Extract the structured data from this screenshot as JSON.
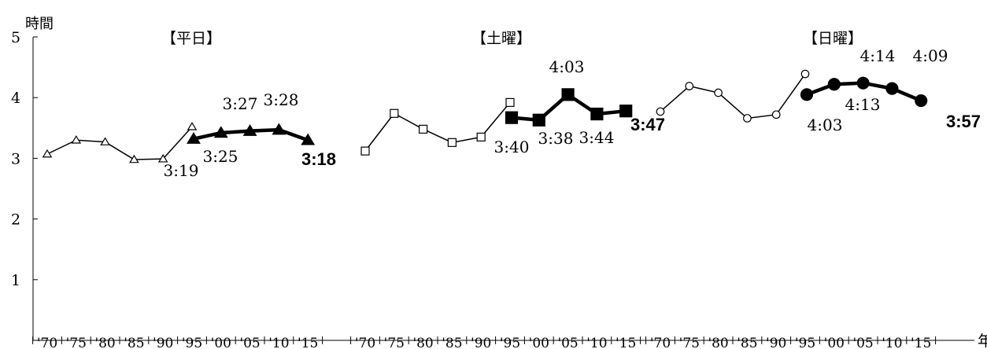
{
  "chart_data": {
    "type": "line",
    "ylabel": "時間",
    "xlabel": "年",
    "ylim": [
      0,
      5
    ],
    "yticks": [
      "5",
      "4",
      "3",
      "2",
      "1"
    ],
    "categories": [
      "'70",
      "'75",
      "'80",
      "'85",
      "'90",
      "'95",
      "'00",
      "'05",
      "'10",
      "'15"
    ],
    "grid": false,
    "panels": [
      {
        "title": "【平日】",
        "old_series": {
          "marker": "open-triangle",
          "x": [
            "'70",
            "'75",
            "'80",
            "'85",
            "'90",
            "'95"
          ],
          "values": [
            3.07,
            3.3,
            3.27,
            2.98,
            2.99,
            3.52
          ]
        },
        "new_series": {
          "marker": "filled-triangle",
          "x": [
            "'95",
            "'00",
            "'05",
            "'10",
            "'15"
          ],
          "values": [
            3.32,
            3.42,
            3.45,
            3.47,
            3.3
          ]
        },
        "data_labels": [
          "3:19",
          "3:25",
          "3:27",
          "3:28",
          "3:18"
        ]
      },
      {
        "title": "【土曜】",
        "old_series": {
          "marker": "open-square",
          "x": [
            "'70",
            "'75",
            "'80",
            "'85",
            "'90",
            "'95"
          ],
          "values": [
            3.12,
            3.74,
            3.48,
            3.26,
            3.35,
            3.92
          ]
        },
        "new_series": {
          "marker": "filled-square",
          "x": [
            "'95",
            "'00",
            "'05",
            "'10",
            "'15"
          ],
          "values": [
            3.67,
            3.63,
            4.05,
            3.73,
            3.78
          ]
        },
        "data_labels": [
          "3:40",
          "3:38",
          "4:03",
          "3:44",
          "3:47"
        ]
      },
      {
        "title": "【日曜】",
        "old_series": {
          "marker": "open-circle",
          "x": [
            "'70",
            "'75",
            "'80",
            "'85",
            "'90",
            "'95"
          ],
          "values": [
            3.77,
            4.19,
            4.08,
            3.66,
            3.72,
            4.39
          ]
        },
        "new_series": {
          "marker": "filled-circle",
          "x": [
            "'95",
            "'00",
            "'05",
            "'10",
            "'15"
          ],
          "values": [
            4.05,
            4.22,
            4.24,
            4.15,
            3.95
          ]
        },
        "data_labels": [
          "4:03",
          "4:13",
          "4:14",
          "4:09",
          "3:57"
        ]
      }
    ]
  }
}
